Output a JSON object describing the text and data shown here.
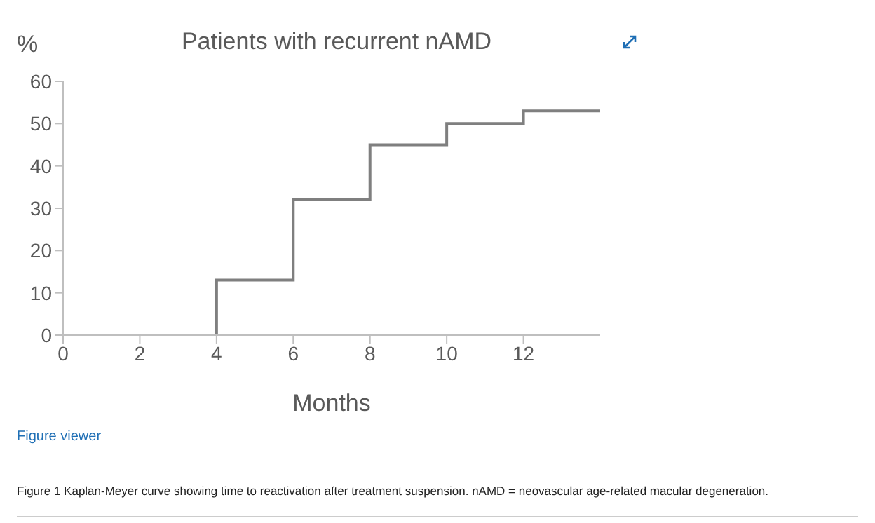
{
  "chart_data": {
    "type": "step",
    "title": "Patients with recurrent nAMD",
    "ylabel": "%",
    "xlabel": "Months",
    "x": [
      0,
      4,
      6,
      8,
      10,
      12,
      14
    ],
    "values": [
      0,
      13,
      32,
      45,
      50,
      53,
      53
    ],
    "color": "#7f7f7f",
    "xlim": [
      0,
      14
    ],
    "xticks": [
      0,
      2,
      4,
      6,
      8,
      10,
      12
    ],
    "ylim": [
      0,
      60
    ],
    "yticks": [
      0,
      10,
      20,
      30,
      40,
      50,
      60
    ],
    "grid": false,
    "legend": false,
    "marker": "none",
    "line_style": "solid",
    "annotations": [
      "Figure viewer",
      "Figure 1  Kaplan-Meyer curve showing time to reactivation after treatment suspension. nAMD = neovascular age-related macular degeneration."
    ]
  }
}
